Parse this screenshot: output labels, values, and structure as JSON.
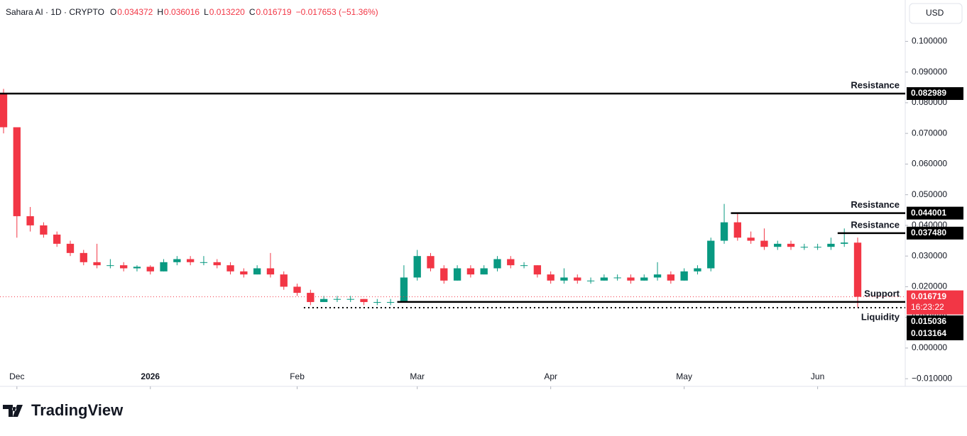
{
  "chart_data": {
    "type": "candlestick",
    "header": {
      "symbol": "Sahara AI · 1D · CRYPTO",
      "fields": [
        {
          "key": "O",
          "label": "0.034372"
        },
        {
          "key": "H",
          "label": "0.036016"
        },
        {
          "key": "L",
          "label": "0.013220"
        },
        {
          "key": "C",
          "label": "0.016719"
        }
      ],
      "change": "−0.017653 (−51.36%)"
    },
    "currency": "USD",
    "brand": "TradingView",
    "categories": [
      null,
      "Dec",
      null,
      null,
      null,
      null,
      null,
      null,
      null,
      null,
      null,
      "2026",
      null,
      null,
      null,
      null,
      null,
      null,
      null,
      null,
      null,
      null,
      "Feb",
      null,
      null,
      null,
      null,
      null,
      null,
      null,
      null,
      "Mar",
      null,
      null,
      null,
      null,
      null,
      null,
      null,
      null,
      null,
      "Apr",
      null,
      null,
      null,
      null,
      null,
      null,
      null,
      null,
      null,
      "May",
      null,
      null,
      null,
      null,
      null,
      null,
      null,
      null,
      null,
      "Jun",
      null,
      null,
      null
    ],
    "open": [
      0.083,
      0.072,
      0.043,
      0.04,
      0.037,
      0.034,
      0.031,
      0.028,
      0.027,
      0.027,
      0.026,
      0.0265,
      0.025,
      0.028,
      0.029,
      0.028,
      0.028,
      0.027,
      0.025,
      0.024,
      0.026,
      0.024,
      0.02,
      0.018,
      0.015,
      0.016,
      0.016,
      0.016,
      0.015,
      0.015,
      0.015,
      0.023,
      0.03,
      0.026,
      0.022,
      0.026,
      0.024,
      0.026,
      0.029,
      0.027,
      0.027,
      0.024,
      0.022,
      0.023,
      0.022,
      0.022,
      0.023,
      0.023,
      0.022,
      0.023,
      0.024,
      0.022,
      0.025,
      0.026,
      0.035,
      0.041,
      0.036,
      0.035,
      0.033,
      0.034,
      0.033,
      0.033,
      0.033,
      0.034,
      0.034372
    ],
    "high": [
      0.0845,
      0.072,
      0.046,
      0.041,
      0.038,
      0.035,
      0.032,
      0.034,
      0.029,
      0.028,
      0.027,
      0.027,
      0.029,
      0.03,
      0.03,
      0.03,
      0.029,
      0.028,
      0.026,
      0.027,
      0.031,
      0.025,
      0.021,
      0.019,
      0.017,
      0.017,
      0.017,
      0.016,
      0.016,
      0.016,
      0.027,
      0.032,
      0.031,
      0.027,
      0.027,
      0.027,
      0.027,
      0.03,
      0.03,
      0.028,
      0.027,
      0.025,
      0.026,
      0.024,
      0.023,
      0.024,
      0.024,
      0.024,
      0.024,
      0.028,
      0.025,
      0.026,
      0.027,
      0.036,
      0.047,
      0.044,
      0.038,
      0.039,
      0.035,
      0.035,
      0.034,
      0.034,
      0.036,
      0.039,
      0.036016
    ],
    "low": [
      0.07,
      0.036,
      0.038,
      0.036,
      0.033,
      0.03,
      0.027,
      0.026,
      0.026,
      0.025,
      0.025,
      0.024,
      0.025,
      0.027,
      0.027,
      0.027,
      0.026,
      0.024,
      0.023,
      0.024,
      0.023,
      0.019,
      0.017,
      0.014,
      0.015,
      0.015,
      0.015,
      0.014,
      0.014,
      0.014,
      0.015,
      0.022,
      0.025,
      0.021,
      0.022,
      0.023,
      0.024,
      0.025,
      0.026,
      0.026,
      0.023,
      0.021,
      0.021,
      0.021,
      0.021,
      0.022,
      0.022,
      0.021,
      0.022,
      0.022,
      0.021,
      0.022,
      0.024,
      0.025,
      0.034,
      0.035,
      0.034,
      0.032,
      0.032,
      0.032,
      0.032,
      0.032,
      0.032,
      0.033,
      0.01322
    ],
    "close": [
      0.072,
      0.043,
      0.04,
      0.037,
      0.034,
      0.031,
      0.028,
      0.027,
      0.027,
      0.026,
      0.0265,
      0.025,
      0.028,
      0.029,
      0.028,
      0.028,
      0.027,
      0.025,
      0.024,
      0.026,
      0.024,
      0.02,
      0.018,
      0.015,
      0.016,
      0.016,
      0.016,
      0.015,
      0.015,
      0.015,
      0.023,
      0.03,
      0.026,
      0.022,
      0.026,
      0.024,
      0.026,
      0.029,
      0.027,
      0.027,
      0.024,
      0.022,
      0.023,
      0.022,
      0.022,
      0.023,
      0.023,
      0.022,
      0.023,
      0.024,
      0.022,
      0.025,
      0.026,
      0.035,
      0.041,
      0.036,
      0.035,
      0.033,
      0.034,
      0.033,
      0.033,
      0.033,
      0.034,
      0.0344,
      0.016719
    ],
    "up_color": "#089981",
    "down_color": "#f23645",
    "ylim": [
      -0.0125,
      0.1135
    ],
    "yticks": [
      {
        "value": 0.1,
        "label": "0.100000"
      },
      {
        "value": 0.09,
        "label": "0.090000"
      },
      {
        "value": 0.08,
        "label": "0.080000"
      },
      {
        "value": 0.07,
        "label": "0.070000"
      },
      {
        "value": 0.06,
        "label": "0.060000"
      },
      {
        "value": 0.05,
        "label": "0.050000"
      },
      {
        "value": 0.04,
        "label": "0.040000"
      },
      {
        "value": 0.03,
        "label": "0.030000"
      },
      {
        "value": 0.02,
        "label": "0.020000"
      },
      {
        "value": 0.01,
        "label": "0.010000"
      },
      {
        "value": 0,
        "label": "0.000000"
      },
      {
        "value": -0.01,
        "label": "−0.010000"
      }
    ],
    "levels": [
      {
        "name": "Resistance",
        "value": 0.082989,
        "label": "0.082989",
        "start": 0
      },
      {
        "name": "Resistance",
        "value": 0.044001,
        "label": "0.044001",
        "start": 55
      },
      {
        "name": "Resistance",
        "value": 0.03748,
        "label": "0.037480",
        "start": 63
      },
      {
        "name": "Support",
        "value": 0.015036,
        "label": "0.015036",
        "start": 30
      },
      {
        "name": "Liquidity",
        "value": 0.013164,
        "label": "0.013164",
        "start": 23
      }
    ],
    "last": {
      "value": 0.016719,
      "label": "0.016719",
      "countdown": "16:23:22"
    }
  }
}
